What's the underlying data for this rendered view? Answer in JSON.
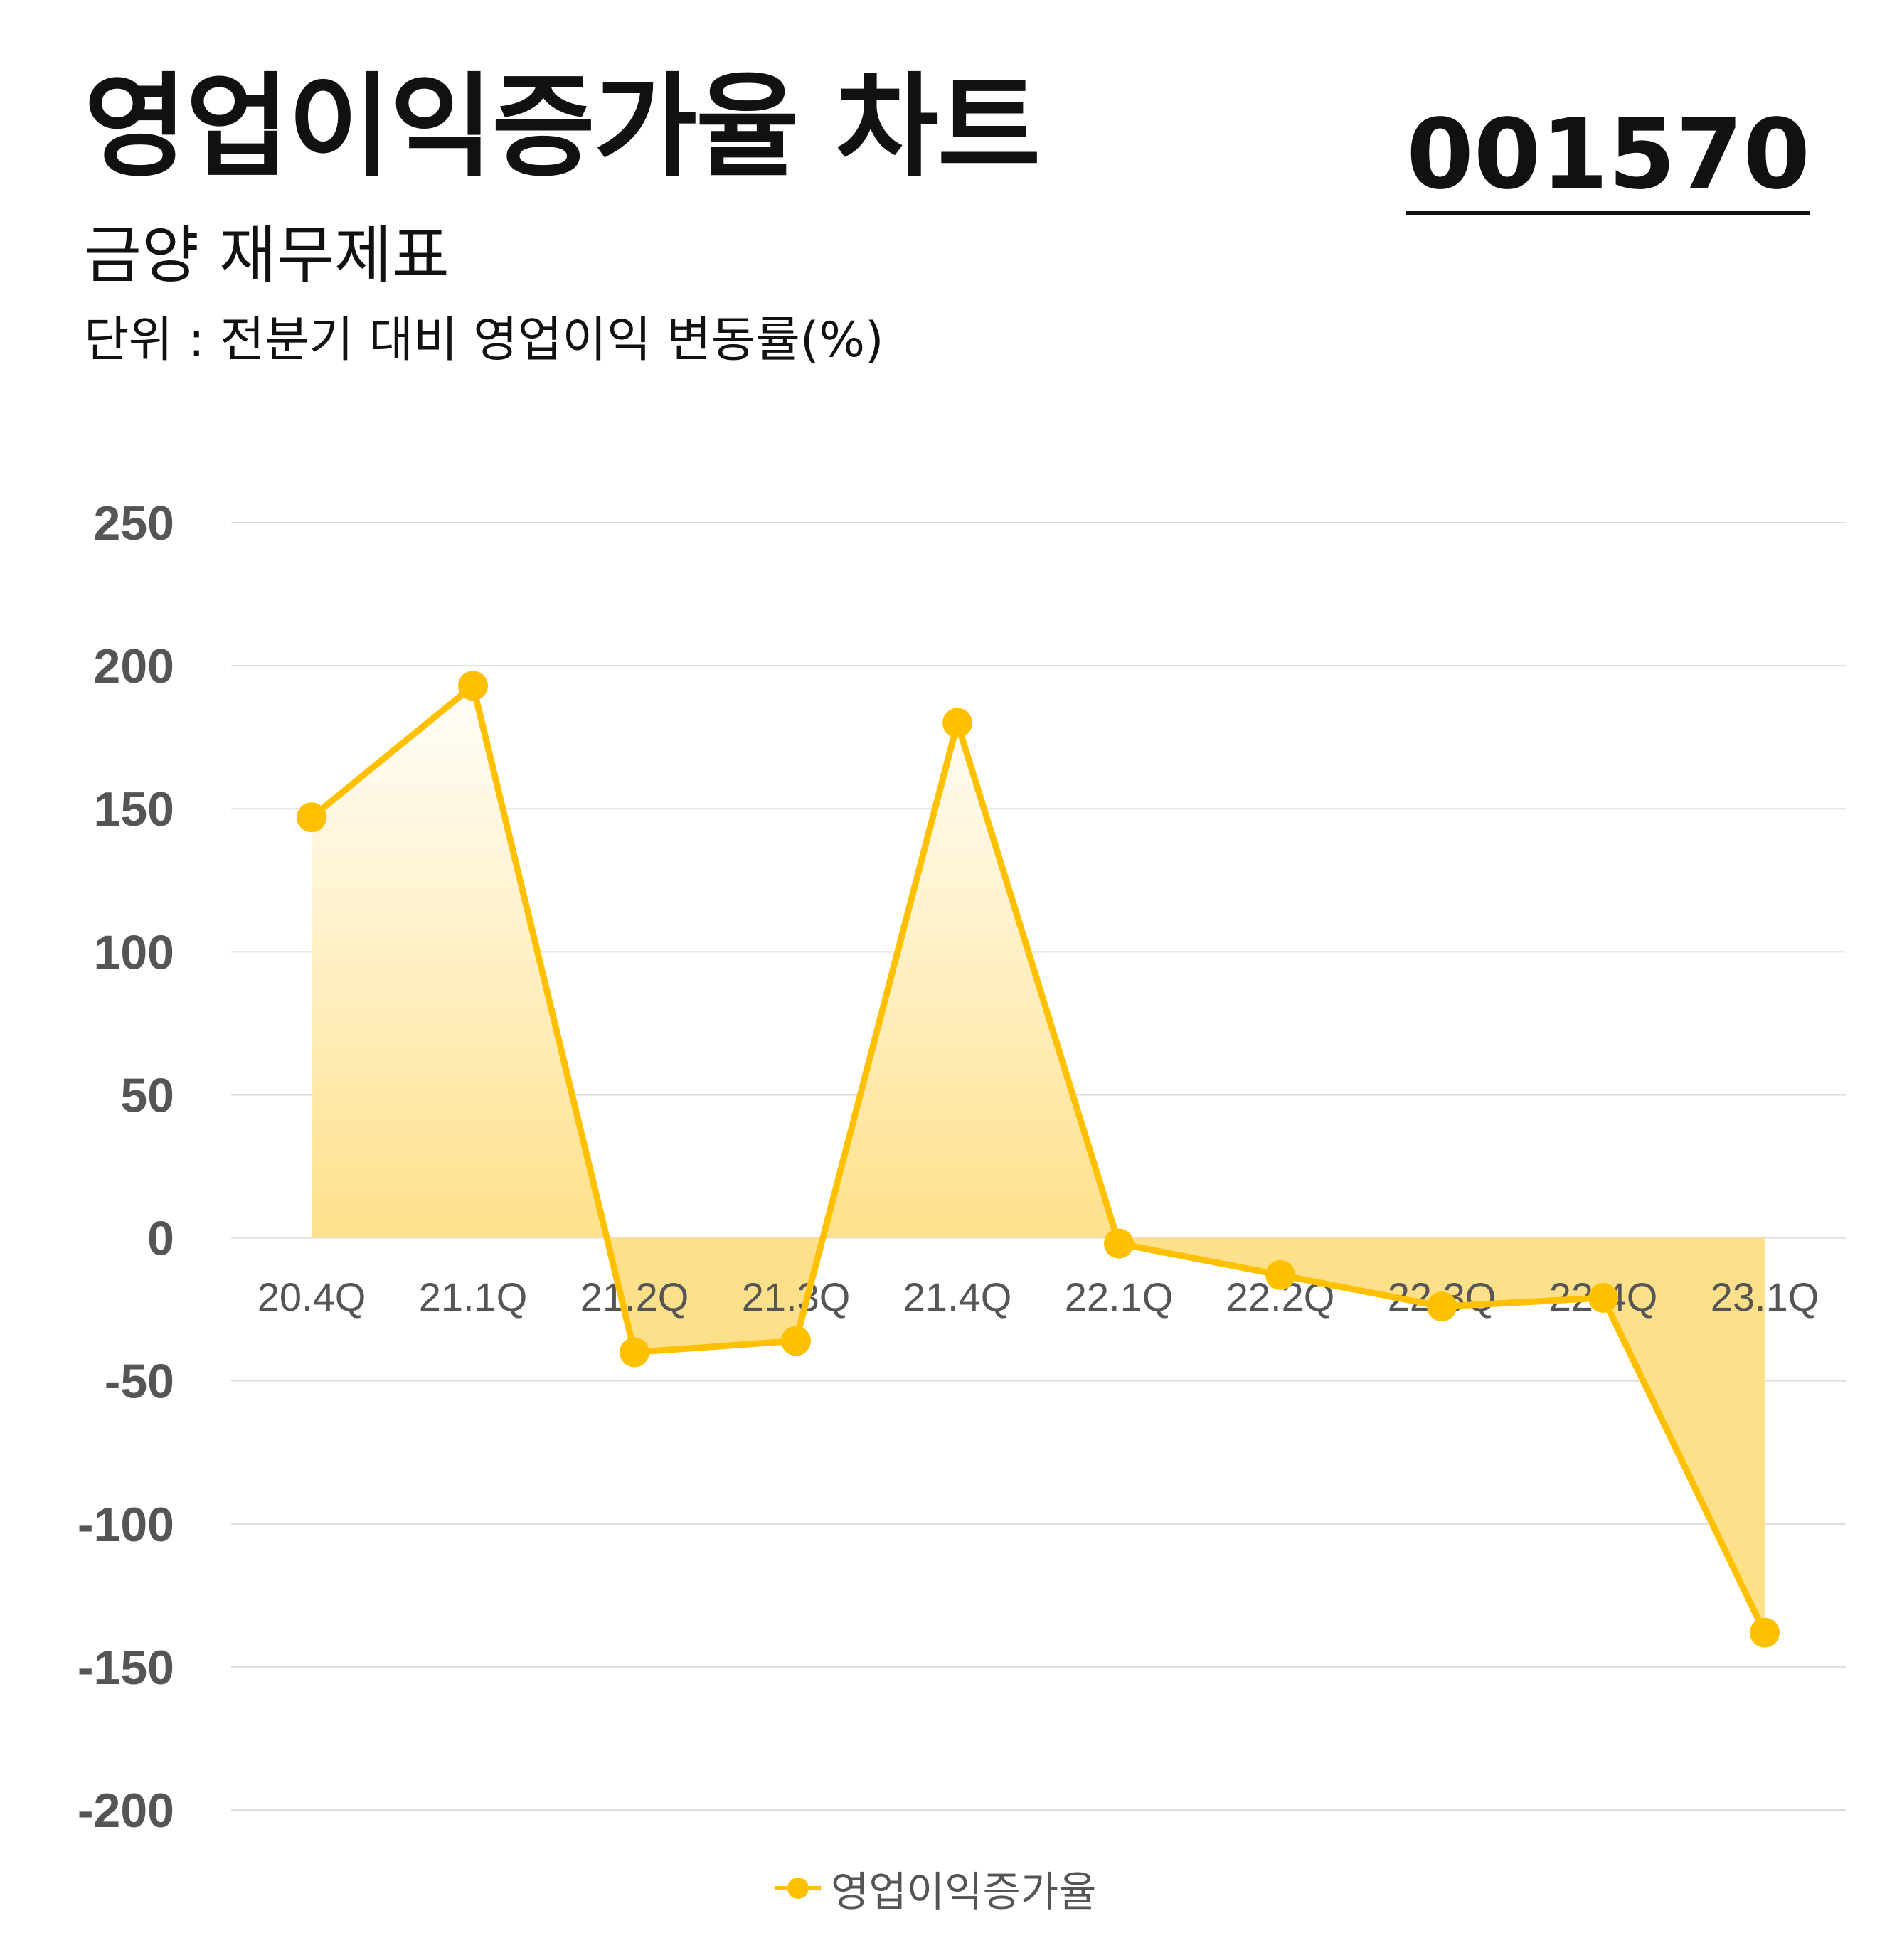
{
  "header": {
    "title": "영업이익증가율 차트",
    "code": "001570",
    "subtitle": "금양 재무제표",
    "unit": "단위 : 전분기 대비 영업이익 변동률(%)"
  },
  "legend": {
    "label": "영업이익증가율"
  },
  "colors": {
    "line": "#FFC000",
    "fill": "#FFE08A",
    "grid": "#DDDDDD",
    "tick": "#555555"
  },
  "chart_data": {
    "type": "area",
    "categories": [
      "20.4Q",
      "21.1Q",
      "21.2Q",
      "21.3Q",
      "21.4Q",
      "22.1Q",
      "22.2Q",
      "22.3Q",
      "22.4Q",
      "23.1Q"
    ],
    "series": [
      {
        "name": "영업이익증가율",
        "values": [
          147,
          193,
          -40,
          -36,
          180,
          -2,
          -13,
          -24,
          -21,
          -138
        ]
      }
    ],
    "ylim": [
      -200,
      250
    ],
    "yticks": [
      250,
      200,
      150,
      100,
      50,
      0,
      -50,
      -100,
      -150,
      -200
    ],
    "grid": true,
    "legend_position": "bottom-center"
  }
}
